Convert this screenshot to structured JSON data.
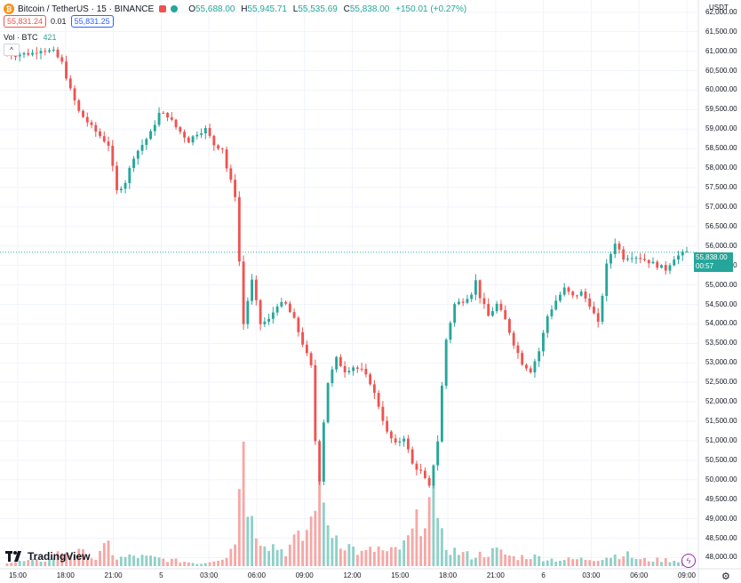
{
  "header": {
    "symbol": "Bitcoin / TetherUS · 15 · BINANCE",
    "o_label": "O",
    "open": "55,688.00",
    "h_label": "H",
    "high": "55,945.71",
    "l_label": "L",
    "low": "55,535.69",
    "c_label": "C",
    "close": "55,838.00",
    "change": "+150.01 (+0.27%)"
  },
  "quote": {
    "sell": "55,831.24",
    "spread": "0.01",
    "buy": "55,831.25"
  },
  "volume_legend": {
    "label": "Vol · BTC",
    "value": "421"
  },
  "axis": {
    "unit": "USDT",
    "last_price": "55,838.00",
    "countdown": "00:57",
    "y_ticks": [
      "62,000.00",
      "61,500.00",
      "61,000.00",
      "60,500.00",
      "60,000.00",
      "59,500.00",
      "59,000.00",
      "58,500.00",
      "58,000.00",
      "57,500.00",
      "57,000.00",
      "56,500.00",
      "56,000.00",
      "55,500.00",
      "55,000.00",
      "54,500.00",
      "54,000.00",
      "53,500.00",
      "53,000.00",
      "52,500.00",
      "52,000.00",
      "51,500.00",
      "51,000.00",
      "50,500.00",
      "50,000.00",
      "49,500.00",
      "49,000.00",
      "48,500.00",
      "48,000.00"
    ],
    "x_ticks": [
      "15:00",
      "18:00",
      "21:00",
      "5",
      "03:00",
      "06:00",
      "09:00",
      "12:00",
      "15:00",
      "18:00",
      "21:00",
      "6",
      "03:00",
      "06:00",
      "09:00"
    ]
  },
  "branding": {
    "logo_text": "TradingView"
  },
  "colors": {
    "up": "#26a69a",
    "down": "#ef5350",
    "vol_up": "#8fd0c8",
    "vol_down": "#f5a8a6",
    "grid": "#f0f3fa"
  },
  "chart_data": {
    "type": "candlestick",
    "interval": "15",
    "ylim": [
      47850,
      62200
    ],
    "x_anchor_labels": [
      "15:00",
      "18:00",
      "21:00",
      "5",
      "03:00",
      "06:00",
      "09:00",
      "12:00",
      "15:00",
      "18:00",
      "21:00",
      "6",
      "03:00",
      "06:00",
      "09:00"
    ],
    "last_price": 55838,
    "price_path": [
      [
        0,
        60900
      ],
      [
        6,
        60950
      ],
      [
        8,
        61050
      ],
      [
        11,
        60980
      ],
      [
        13,
        60700
      ],
      [
        15,
        60000
      ],
      [
        17,
        59450
      ],
      [
        20,
        59050
      ],
      [
        24,
        58600
      ],
      [
        26,
        57400
      ],
      [
        28,
        57650
      ],
      [
        30,
        58300
      ],
      [
        34,
        58900
      ],
      [
        36,
        59400
      ],
      [
        38,
        59350
      ],
      [
        40,
        59050
      ],
      [
        43,
        58700
      ],
      [
        45,
        58900
      ],
      [
        47,
        59000
      ],
      [
        49,
        58600
      ],
      [
        51,
        58500
      ],
      [
        52,
        58000
      ],
      [
        54,
        57300
      ],
      [
        55,
        55600
      ],
      [
        56,
        54000
      ],
      [
        57,
        54600
      ],
      [
        58,
        55100
      ],
      [
        60,
        54000
      ],
      [
        62,
        54100
      ],
      [
        64,
        54500
      ],
      [
        66,
        54500
      ],
      [
        68,
        54100
      ],
      [
        70,
        53500
      ],
      [
        72,
        52900
      ],
      [
        73,
        51000
      ],
      [
        74,
        50000
      ],
      [
        75,
        51500
      ],
      [
        76,
        52500
      ],
      [
        78,
        53100
      ],
      [
        80,
        52800
      ],
      [
        82,
        52900
      ],
      [
        84,
        52800
      ],
      [
        86,
        52500
      ],
      [
        88,
        51900
      ],
      [
        90,
        51200
      ],
      [
        92,
        50900
      ],
      [
        94,
        51100
      ],
      [
        96,
        50400
      ],
      [
        98,
        50200
      ],
      [
        100,
        49800
      ],
      [
        102,
        51000
      ],
      [
        103,
        52400
      ],
      [
        104,
        53600
      ],
      [
        106,
        54500
      ],
      [
        108,
        54600
      ],
      [
        110,
        54800
      ],
      [
        111,
        55100
      ],
      [
        112,
        54700
      ],
      [
        114,
        54200
      ],
      [
        116,
        54500
      ],
      [
        118,
        54100
      ],
      [
        120,
        53500
      ],
      [
        122,
        53000
      ],
      [
        124,
        52800
      ],
      [
        126,
        53300
      ],
      [
        128,
        54200
      ],
      [
        130,
        54600
      ],
      [
        132,
        54900
      ],
      [
        134,
        54700
      ],
      [
        136,
        54800
      ],
      [
        138,
        54500
      ],
      [
        140,
        54000
      ],
      [
        142,
        55500
      ],
      [
        144,
        56100
      ],
      [
        146,
        55700
      ],
      [
        148,
        55750
      ],
      [
        150,
        55700
      ],
      [
        152,
        55600
      ],
      [
        154,
        55500
      ],
      [
        156,
        55400
      ],
      [
        158,
        55700
      ],
      [
        160,
        55800
      ],
      [
        161,
        55838
      ]
    ],
    "volume_path": [
      [
        0,
        0.03
      ],
      [
        10,
        0.05
      ],
      [
        13,
        0.12
      ],
      [
        18,
        0.1
      ],
      [
        21,
        0.06
      ],
      [
        24,
        0.17
      ],
      [
        26,
        0.06
      ],
      [
        30,
        0.08
      ],
      [
        36,
        0.06
      ],
      [
        46,
        0.02
      ],
      [
        52,
        0.08
      ],
      [
        54,
        0.2
      ],
      [
        55,
        0.55
      ],
      [
        56,
        0.8
      ],
      [
        57,
        0.58
      ],
      [
        58,
        0.35
      ],
      [
        60,
        0.25
      ],
      [
        62,
        0.18
      ],
      [
        66,
        0.12
      ],
      [
        68,
        0.2
      ],
      [
        70,
        0.22
      ],
      [
        72,
        0.36
      ],
      [
        73,
        0.62
      ],
      [
        74,
        0.45
      ],
      [
        76,
        0.32
      ],
      [
        80,
        0.18
      ],
      [
        84,
        0.1
      ],
      [
        88,
        0.14
      ],
      [
        90,
        0.1
      ],
      [
        94,
        0.16
      ],
      [
        96,
        0.26
      ],
      [
        98,
        0.4
      ],
      [
        100,
        0.5
      ],
      [
        101,
        0.38
      ],
      [
        102,
        0.28
      ],
      [
        104,
        0.16
      ],
      [
        106,
        0.12
      ],
      [
        110,
        0.08
      ],
      [
        116,
        0.12
      ],
      [
        120,
        0.07
      ],
      [
        124,
        0.08
      ],
      [
        130,
        0.05
      ],
      [
        140,
        0.06
      ],
      [
        146,
        0.1
      ],
      [
        150,
        0.05
      ],
      [
        156,
        0.05
      ],
      [
        161,
        0.04
      ]
    ],
    "volume_spikes": [
      [
        56,
        1.0
      ],
      [
        74,
        0.72
      ],
      [
        101,
        0.68
      ],
      [
        55,
        0.62
      ]
    ]
  }
}
